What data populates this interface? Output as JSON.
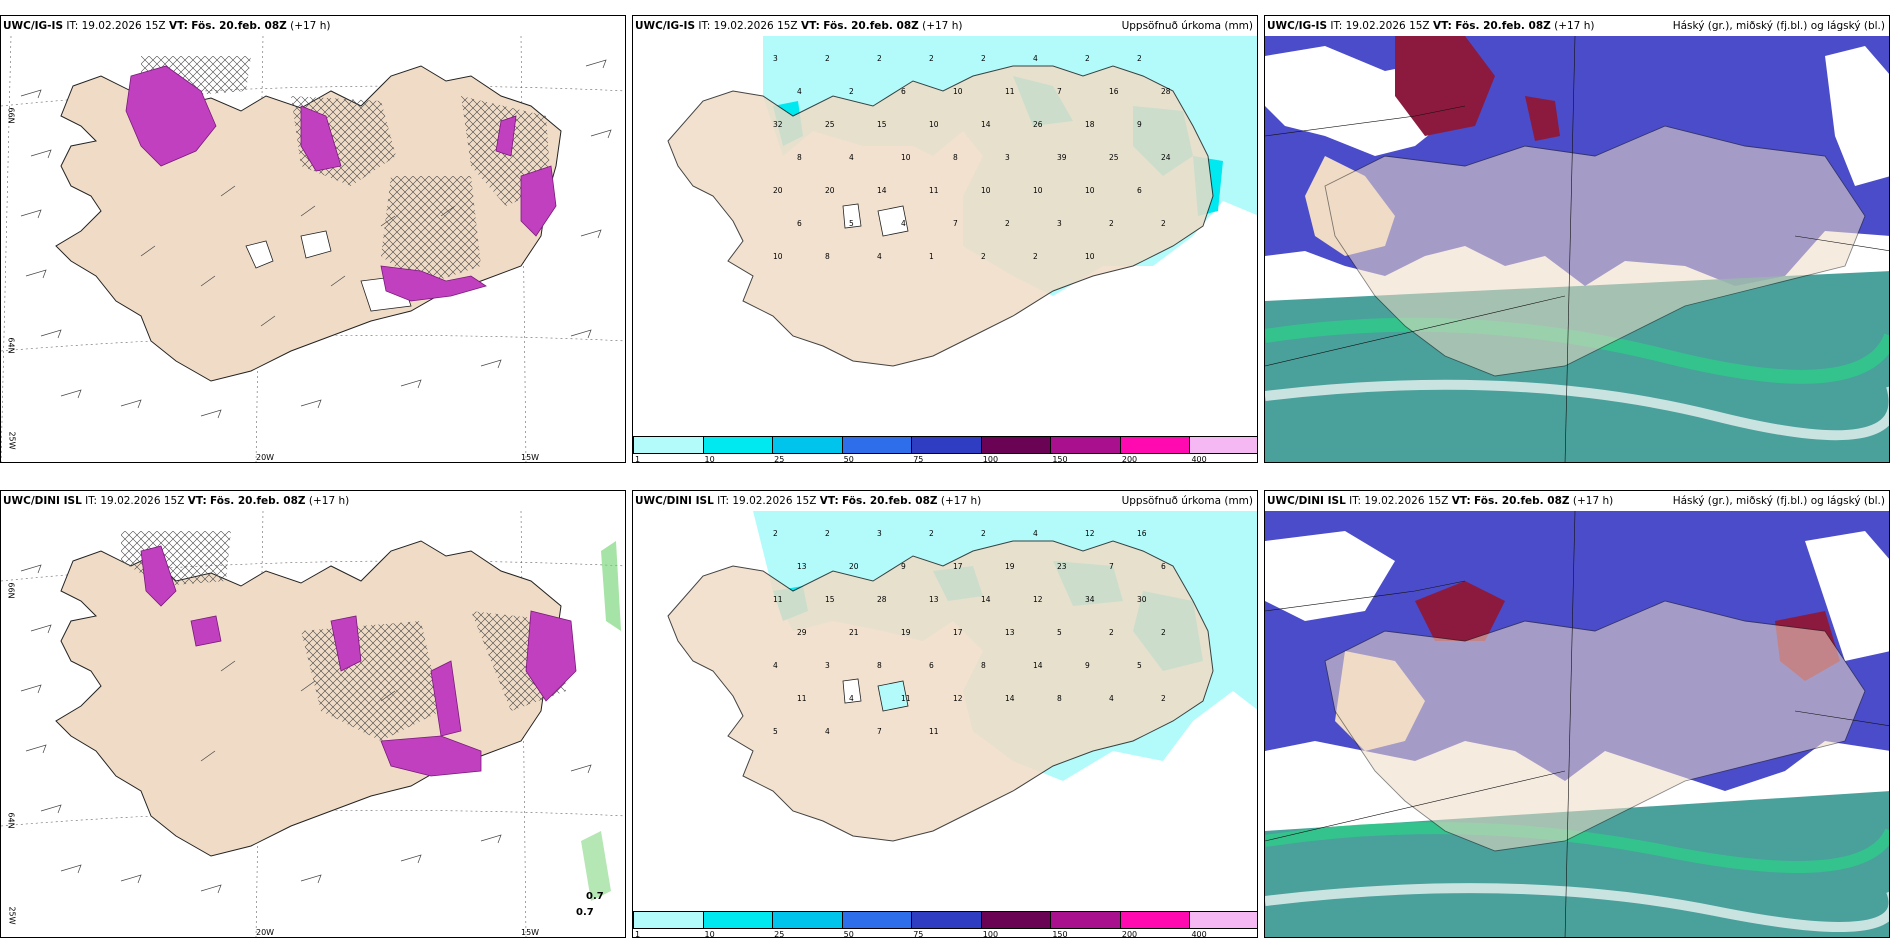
{
  "rows": [
    {
      "model": "UWC/IG-IS",
      "it_label": "IT:",
      "it_value": "19.02.2026 15Z",
      "vt_label": "VT:",
      "vt_value": "Fös. 20.feb. 08Z",
      "lead": "(+17 h)"
    },
    {
      "model": "UWC/DINI ISL",
      "it_label": "IT:",
      "it_value": "19.02.2026 15Z",
      "vt_label": "VT:",
      "vt_value": "Fös. 20.feb. 08Z",
      "lead": "(+17 h)"
    }
  ],
  "precip_title": "Uppsöfnuð úrkoma (mm)",
  "cloud_title": "Háský (gr.), miðský (fj.bl.) og lágský (bl.)",
  "grid_labels": {
    "lat66": "66N",
    "lat64": "64N",
    "lon25": "25W",
    "lon20": "20W",
    "lon15": "15W"
  },
  "extra_labels": [
    "0.7",
    "0.7"
  ],
  "colorbar": {
    "ticks": [
      "1",
      "10",
      "25",
      "50",
      "75",
      "100",
      "150",
      "200",
      "400"
    ],
    "colors": [
      "#b3fbfb",
      "#00e8f0",
      "#00c4ec",
      "#2f6eea",
      "#2e3dc2",
      "#6a0354",
      "#a8108e",
      "#ff0ab0",
      "#f5b8f2"
    ]
  },
  "precip_numbers_top": [
    "3",
    "2",
    "2",
    "2",
    "2",
    "4",
    "2",
    "2",
    "4",
    "2",
    "6",
    "10",
    "11",
    "7",
    "16",
    "28",
    "32",
    "25",
    "15",
    "10",
    "14",
    "26",
    "18",
    "9",
    "8",
    "4",
    "10",
    "8",
    "3",
    "39",
    "25",
    "24",
    "20",
    "20",
    "14",
    "11",
    "10",
    "10",
    "10",
    "6",
    "6",
    "5",
    "4",
    "7",
    "2",
    "3",
    "2",
    "2",
    "10",
    "8",
    "4",
    "1",
    "2",
    "2",
    "10"
  ],
  "precip_numbers_bottom": [
    "2",
    "2",
    "3",
    "2",
    "2",
    "4",
    "12",
    "16",
    "13",
    "20",
    "9",
    "17",
    "19",
    "23",
    "7",
    "6",
    "11",
    "15",
    "28",
    "13",
    "14",
    "12",
    "34",
    "30",
    "29",
    "21",
    "19",
    "17",
    "13",
    "5",
    "2",
    "2",
    "4",
    "3",
    "8",
    "6",
    "8",
    "14",
    "9",
    "5",
    "11",
    "4",
    "11",
    "12",
    "14",
    "8",
    "4",
    "2",
    "5",
    "4",
    "7",
    "11"
  ]
}
